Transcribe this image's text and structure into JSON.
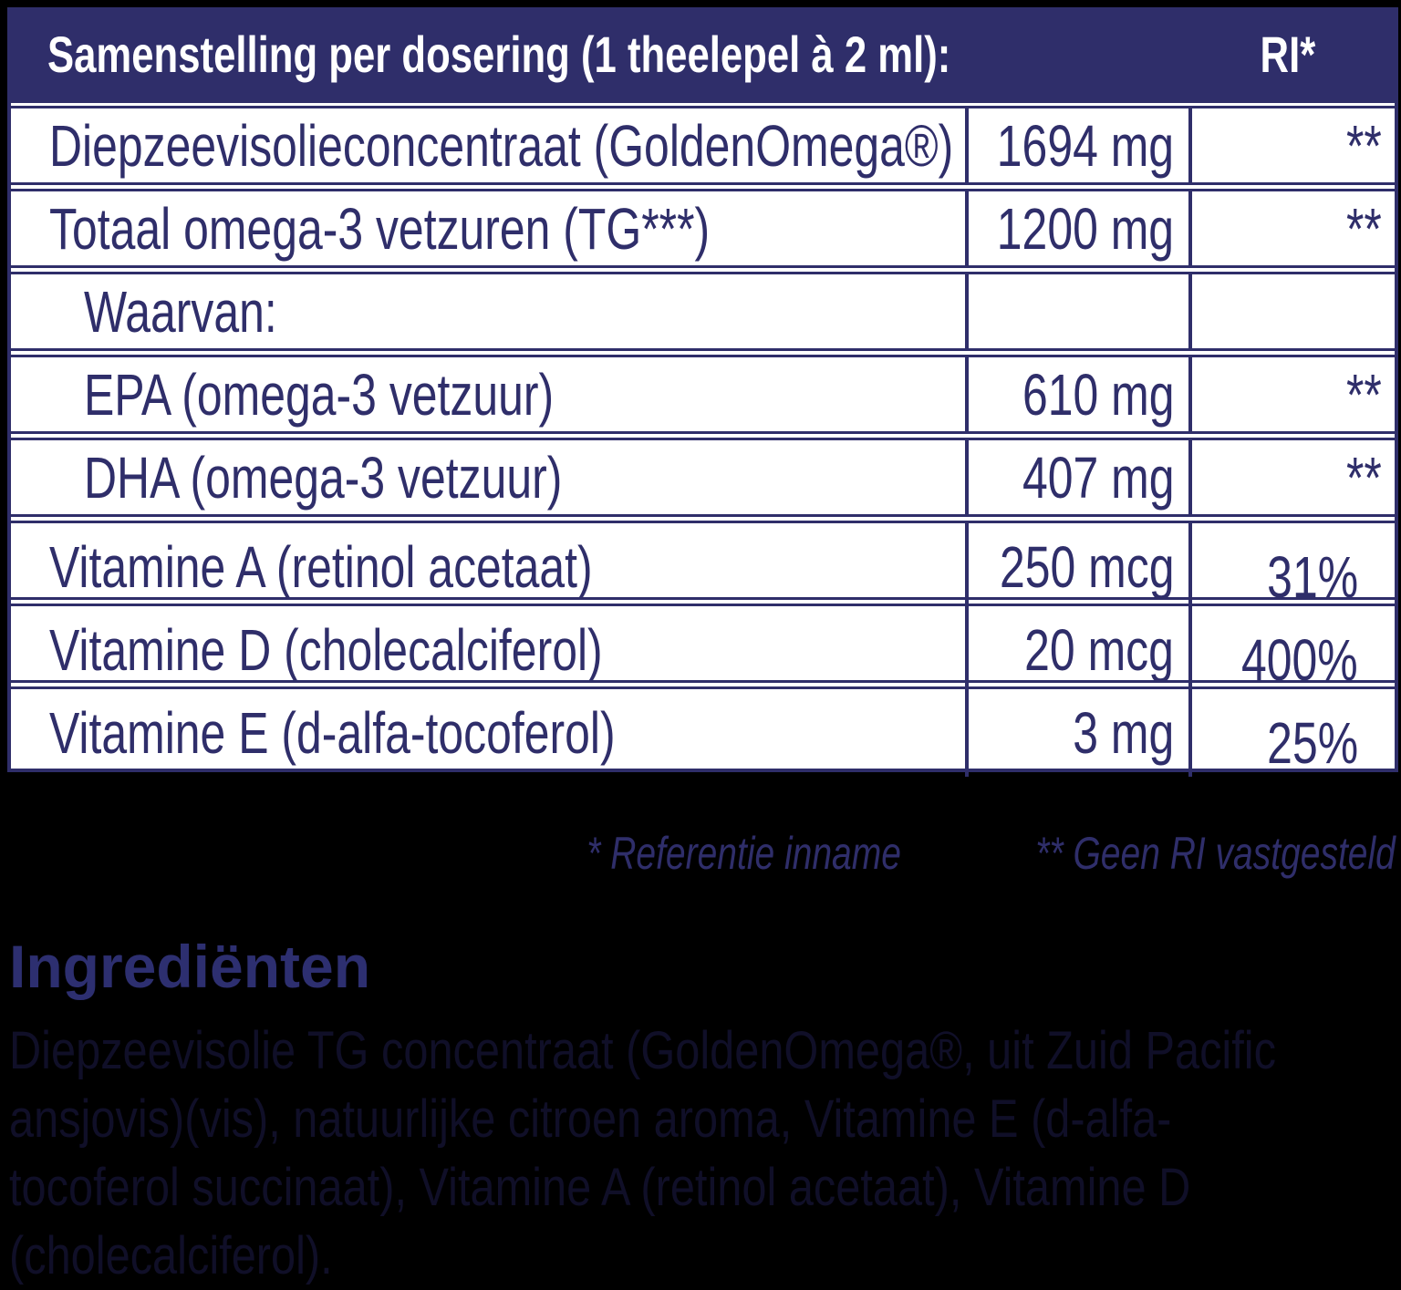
{
  "colors": {
    "navy": "#2f2e6a",
    "header_bg": "#2f2e6a",
    "header_text": "#ffffff",
    "row_bg": "#ffffff",
    "page_bg": "#000000",
    "heading_text": "#2d2f70",
    "ingredients_text": "#100f28"
  },
  "table": {
    "header": {
      "title": "Samenstelling per dosering (1 theelepel à 2 ml):",
      "ri_label": "RI*"
    },
    "rows": [
      {
        "name": "Diepzeevisolieconcentraat (GoldenOmega®)",
        "amount": "1694 mg",
        "ri": "**",
        "indent": false
      },
      {
        "name": "Totaal omega-3 vetzuren (TG***)",
        "amount": "1200 mg",
        "ri": "**",
        "indent": false
      },
      {
        "name": "Waarvan:",
        "amount": "",
        "ri": "",
        "indent": true
      },
      {
        "name": "EPA (omega-3 vetzuur)",
        "amount": "610 mg",
        "ri": "**",
        "indent": true
      },
      {
        "name": "DHA (omega-3 vetzuur)",
        "amount": "407 mg",
        "ri": "**",
        "indent": true
      },
      {
        "name": "Vitamine A (retinol acetaat)",
        "amount": "250 mcg",
        "ri": "31%",
        "indent": false
      },
      {
        "name": "Vitamine D (cholecalciferol)",
        "amount": "20 mcg",
        "ri": "400%",
        "indent": false
      },
      {
        "name": "Vitamine E (d-alfa-tocoferol)",
        "amount": "3 mg",
        "ri": "25%",
        "indent": false
      }
    ]
  },
  "footnotes": {
    "reference": "* Referentie inname",
    "no_ri": "** Geen RI vastgesteld"
  },
  "ingredients": {
    "heading": "Ingrediënten",
    "text": "Diepzeevisolie TG concentraat (GoldenOmega®, uit Zuid Pacific ansjovis)(vis), natuurlijke citroen aroma, Vitamine E (d-alfa-tocoferol succinaat), Vitamine A (retinol acetaat), Vitamine D (cholecalciferol).",
    "lines": [
      "Diepzeevisolie TG concentraat (GoldenOmega®, uit Zuid Pacific",
      "ansjovis)(vis), natuurlijke citroen aroma, Vitamine E (d-alfa-",
      "tocoferol succinaat), Vitamine A (retinol acetaat), Vitamine D",
      "(cholecalciferol)."
    ]
  }
}
